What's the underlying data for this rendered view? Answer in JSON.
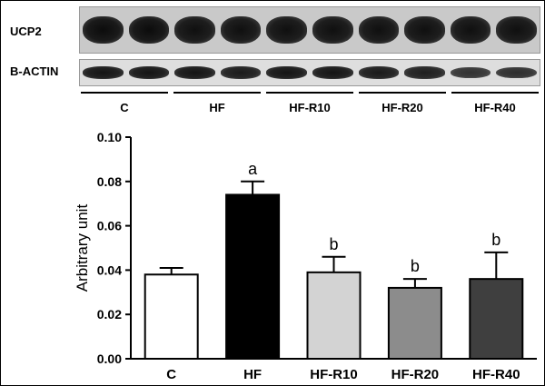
{
  "blot": {
    "rows": [
      {
        "label": "UCP2",
        "intensities": [
          1.0,
          1.0,
          0.95,
          0.95,
          0.95,
          0.95,
          0.95,
          0.95,
          0.95,
          0.95
        ]
      },
      {
        "label": "B-ACTIN",
        "intensities": [
          0.9,
          0.9,
          0.9,
          0.85,
          0.9,
          0.9,
          0.85,
          0.8,
          0.6,
          0.65
        ]
      }
    ],
    "groups": [
      "C",
      "HF",
      "HF-R10",
      "HF-R20",
      "HF-R40"
    ]
  },
  "chart_data": {
    "type": "bar",
    "categories": [
      "C",
      "HF",
      "HF-R10",
      "HF-R20",
      "HF-R40"
    ],
    "values": [
      0.038,
      0.074,
      0.039,
      0.032,
      0.036
    ],
    "errors": [
      0.003,
      0.006,
      0.007,
      0.004,
      0.012
    ],
    "annotations": [
      "",
      "a",
      "b",
      "b",
      "b"
    ],
    "colors": [
      "#ffffff",
      "#000000",
      "#d3d3d3",
      "#8c8c8c",
      "#3f3f3f"
    ],
    "ylabel": "Arbitrary unit",
    "ylim": [
      0,
      0.1
    ],
    "yticks": [
      "0.00",
      "0.02",
      "0.04",
      "0.06",
      "0.08",
      "0.10"
    ],
    "grid": false
  }
}
